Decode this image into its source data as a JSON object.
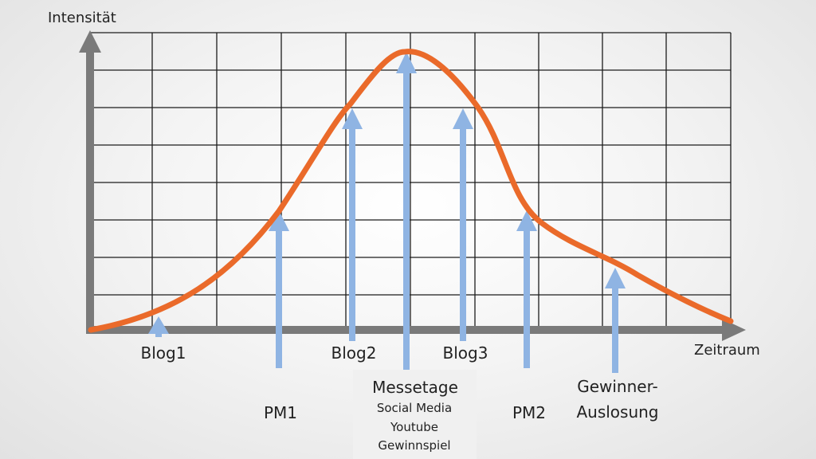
{
  "axis": {
    "y_label": "Intensität",
    "x_label": "Zeitraum"
  },
  "events": {
    "blog1": "Blog1",
    "pm1": "PM1",
    "blog2": "Blog2",
    "messetage": {
      "title": "Messetage",
      "lines": [
        "Social Media",
        "Youtube",
        "Gewinnspiel"
      ]
    },
    "blog3": "Blog3",
    "pm2": "PM2",
    "gewinner": [
      "Gewinner-",
      "Auslosung"
    ]
  },
  "colors": {
    "curve": "#ea6a2a",
    "arrows": "#8fb4e3",
    "axes": "#7a7a7a",
    "grid": "#1c1c1c"
  }
}
